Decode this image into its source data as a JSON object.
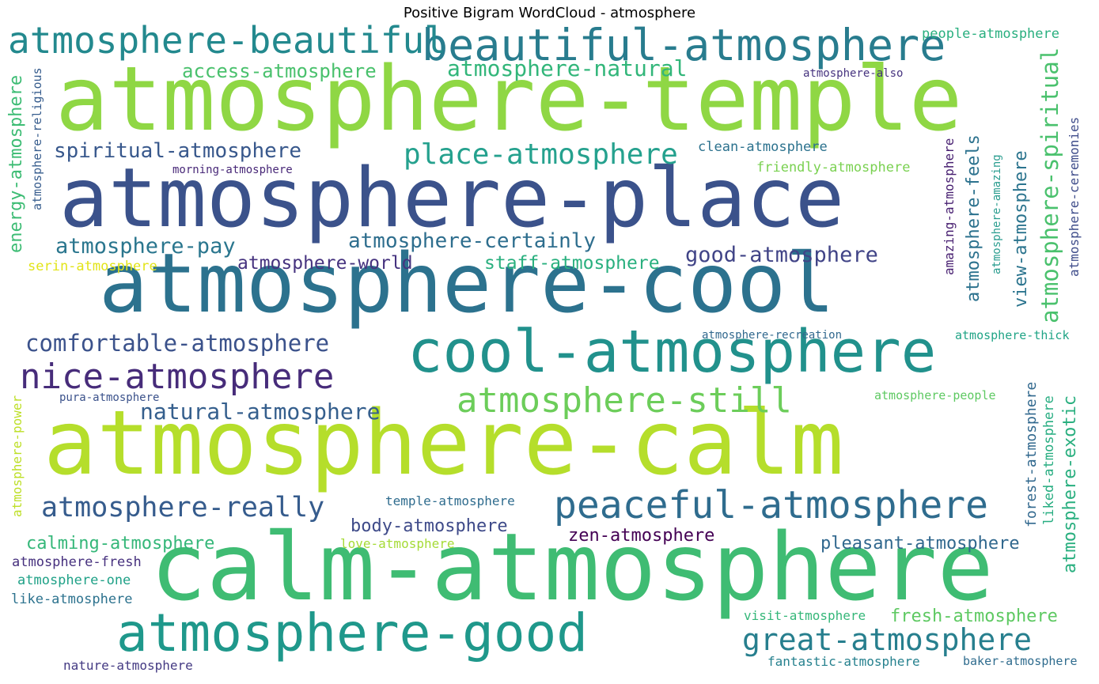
{
  "title": "Positive Bigram WordCloud - atmosphere",
  "chart_data": {
    "type": "wordcloud",
    "title": "Positive Bigram WordCloud - atmosphere",
    "words": [
      {
        "text": "atmosphere-temple",
        "color": "#8fd744"
      },
      {
        "text": "atmosphere-place",
        "color": "#3b528b"
      },
      {
        "text": "atmosphere-cool",
        "color": "#2c728e"
      },
      {
        "text": "atmosphere-calm",
        "color": "#b5de2b"
      },
      {
        "text": "calm-atmosphere",
        "color": "#3fbc73"
      },
      {
        "text": "cool-atmosphere",
        "color": "#21918c"
      },
      {
        "text": "atmosphere-good",
        "color": "#1f988b"
      },
      {
        "text": "beautiful-atmosphere",
        "color": "#287c8e"
      },
      {
        "text": "atmosphere-beautiful",
        "color": "#23898e"
      },
      {
        "text": "atmosphere-still",
        "color": "#6ccd5a"
      },
      {
        "text": "peaceful-atmosphere",
        "color": "#2f6c8e"
      },
      {
        "text": "great-atmosphere",
        "color": "#277f8e"
      },
      {
        "text": "nice-atmosphere",
        "color": "#472c7a"
      },
      {
        "text": "place-atmosphere",
        "color": "#25a18e"
      },
      {
        "text": "comfortable-atmosphere",
        "color": "#3b528b"
      },
      {
        "text": "atmosphere-really",
        "color": "#365c8d"
      },
      {
        "text": "natural-atmosphere",
        "color": "#355f8d"
      },
      {
        "text": "atmosphere-spiritual",
        "color": "#4ac16d"
      },
      {
        "text": "atmosphere-natural",
        "color": "#32b67a"
      },
      {
        "text": "spiritual-atmosphere",
        "color": "#38588c"
      },
      {
        "text": "atmosphere-certainly",
        "color": "#2e6e8e"
      },
      {
        "text": "good-atmosphere",
        "color": "#414487"
      },
      {
        "text": "atmosphere-pay",
        "color": "#2a768e"
      },
      {
        "text": "access-atmosphere",
        "color": "#4ac16d"
      },
      {
        "text": "energy-atmosphere",
        "color": "#3dbc74"
      },
      {
        "text": "atmosphere-exotic",
        "color": "#29af7f"
      },
      {
        "text": "view-atmosphere",
        "color": "#2b748e"
      },
      {
        "text": "atmosphere-feels",
        "color": "#2c728e"
      },
      {
        "text": "atmosphere-world",
        "color": "#46337f"
      },
      {
        "text": "staff-atmosphere",
        "color": "#2ab07f"
      },
      {
        "text": "body-atmosphere",
        "color": "#3e4a89"
      },
      {
        "text": "pleasant-atmosphere",
        "color": "#31688e"
      },
      {
        "text": "zen-atmosphere",
        "color": "#440154"
      },
      {
        "text": "calming-atmosphere",
        "color": "#35b779"
      },
      {
        "text": "fresh-atmosphere",
        "color": "#5ec962"
      },
      {
        "text": "people-atmosphere",
        "color": "#29af7f"
      },
      {
        "text": "atmosphere-religious",
        "color": "#365c8d"
      },
      {
        "text": "atmosphere-ceremonies",
        "color": "#3e4c8a"
      },
      {
        "text": "amazing-atmosphere",
        "color": "#482071"
      },
      {
        "text": "atmosphere-amazing",
        "color": "#2a9d8f"
      },
      {
        "text": "clean-atmosphere",
        "color": "#2c728e"
      },
      {
        "text": "friendly-atmosphere",
        "color": "#7ad151"
      },
      {
        "text": "morning-atmosphere",
        "color": "#482878"
      },
      {
        "text": "atmosphere-also",
        "color": "#46337f"
      },
      {
        "text": "serin-atmosphere",
        "color": "#e2e418"
      },
      {
        "text": "atmosphere-recreation",
        "color": "#31688e"
      },
      {
        "text": "atmosphere-thick",
        "color": "#20a486"
      },
      {
        "text": "atmosphere-people",
        "color": "#5ec962"
      },
      {
        "text": "pura-atmosphere",
        "color": "#3b528b"
      },
      {
        "text": "atmosphere-power",
        "color": "#bddf26"
      },
      {
        "text": "forest-atmosphere",
        "color": "#31688e"
      },
      {
        "text": "liked-atmosphere",
        "color": "#27ad81"
      },
      {
        "text": "temple-atmosphere",
        "color": "#2f6c8e"
      },
      {
        "text": "love-atmosphere",
        "color": "#a5db36"
      },
      {
        "text": "atmosphere-fresh",
        "color": "#46307e"
      },
      {
        "text": "atmosphere-one",
        "color": "#1fa187"
      },
      {
        "text": "like-atmosphere",
        "color": "#2c728e"
      },
      {
        "text": "visit-atmosphere",
        "color": "#35b779"
      },
      {
        "text": "fantastic-atmosphere",
        "color": "#26818e"
      },
      {
        "text": "baker-atmosphere",
        "color": "#2f6c8e"
      },
      {
        "text": "nature-atmosphere",
        "color": "#443a83"
      }
    ]
  }
}
